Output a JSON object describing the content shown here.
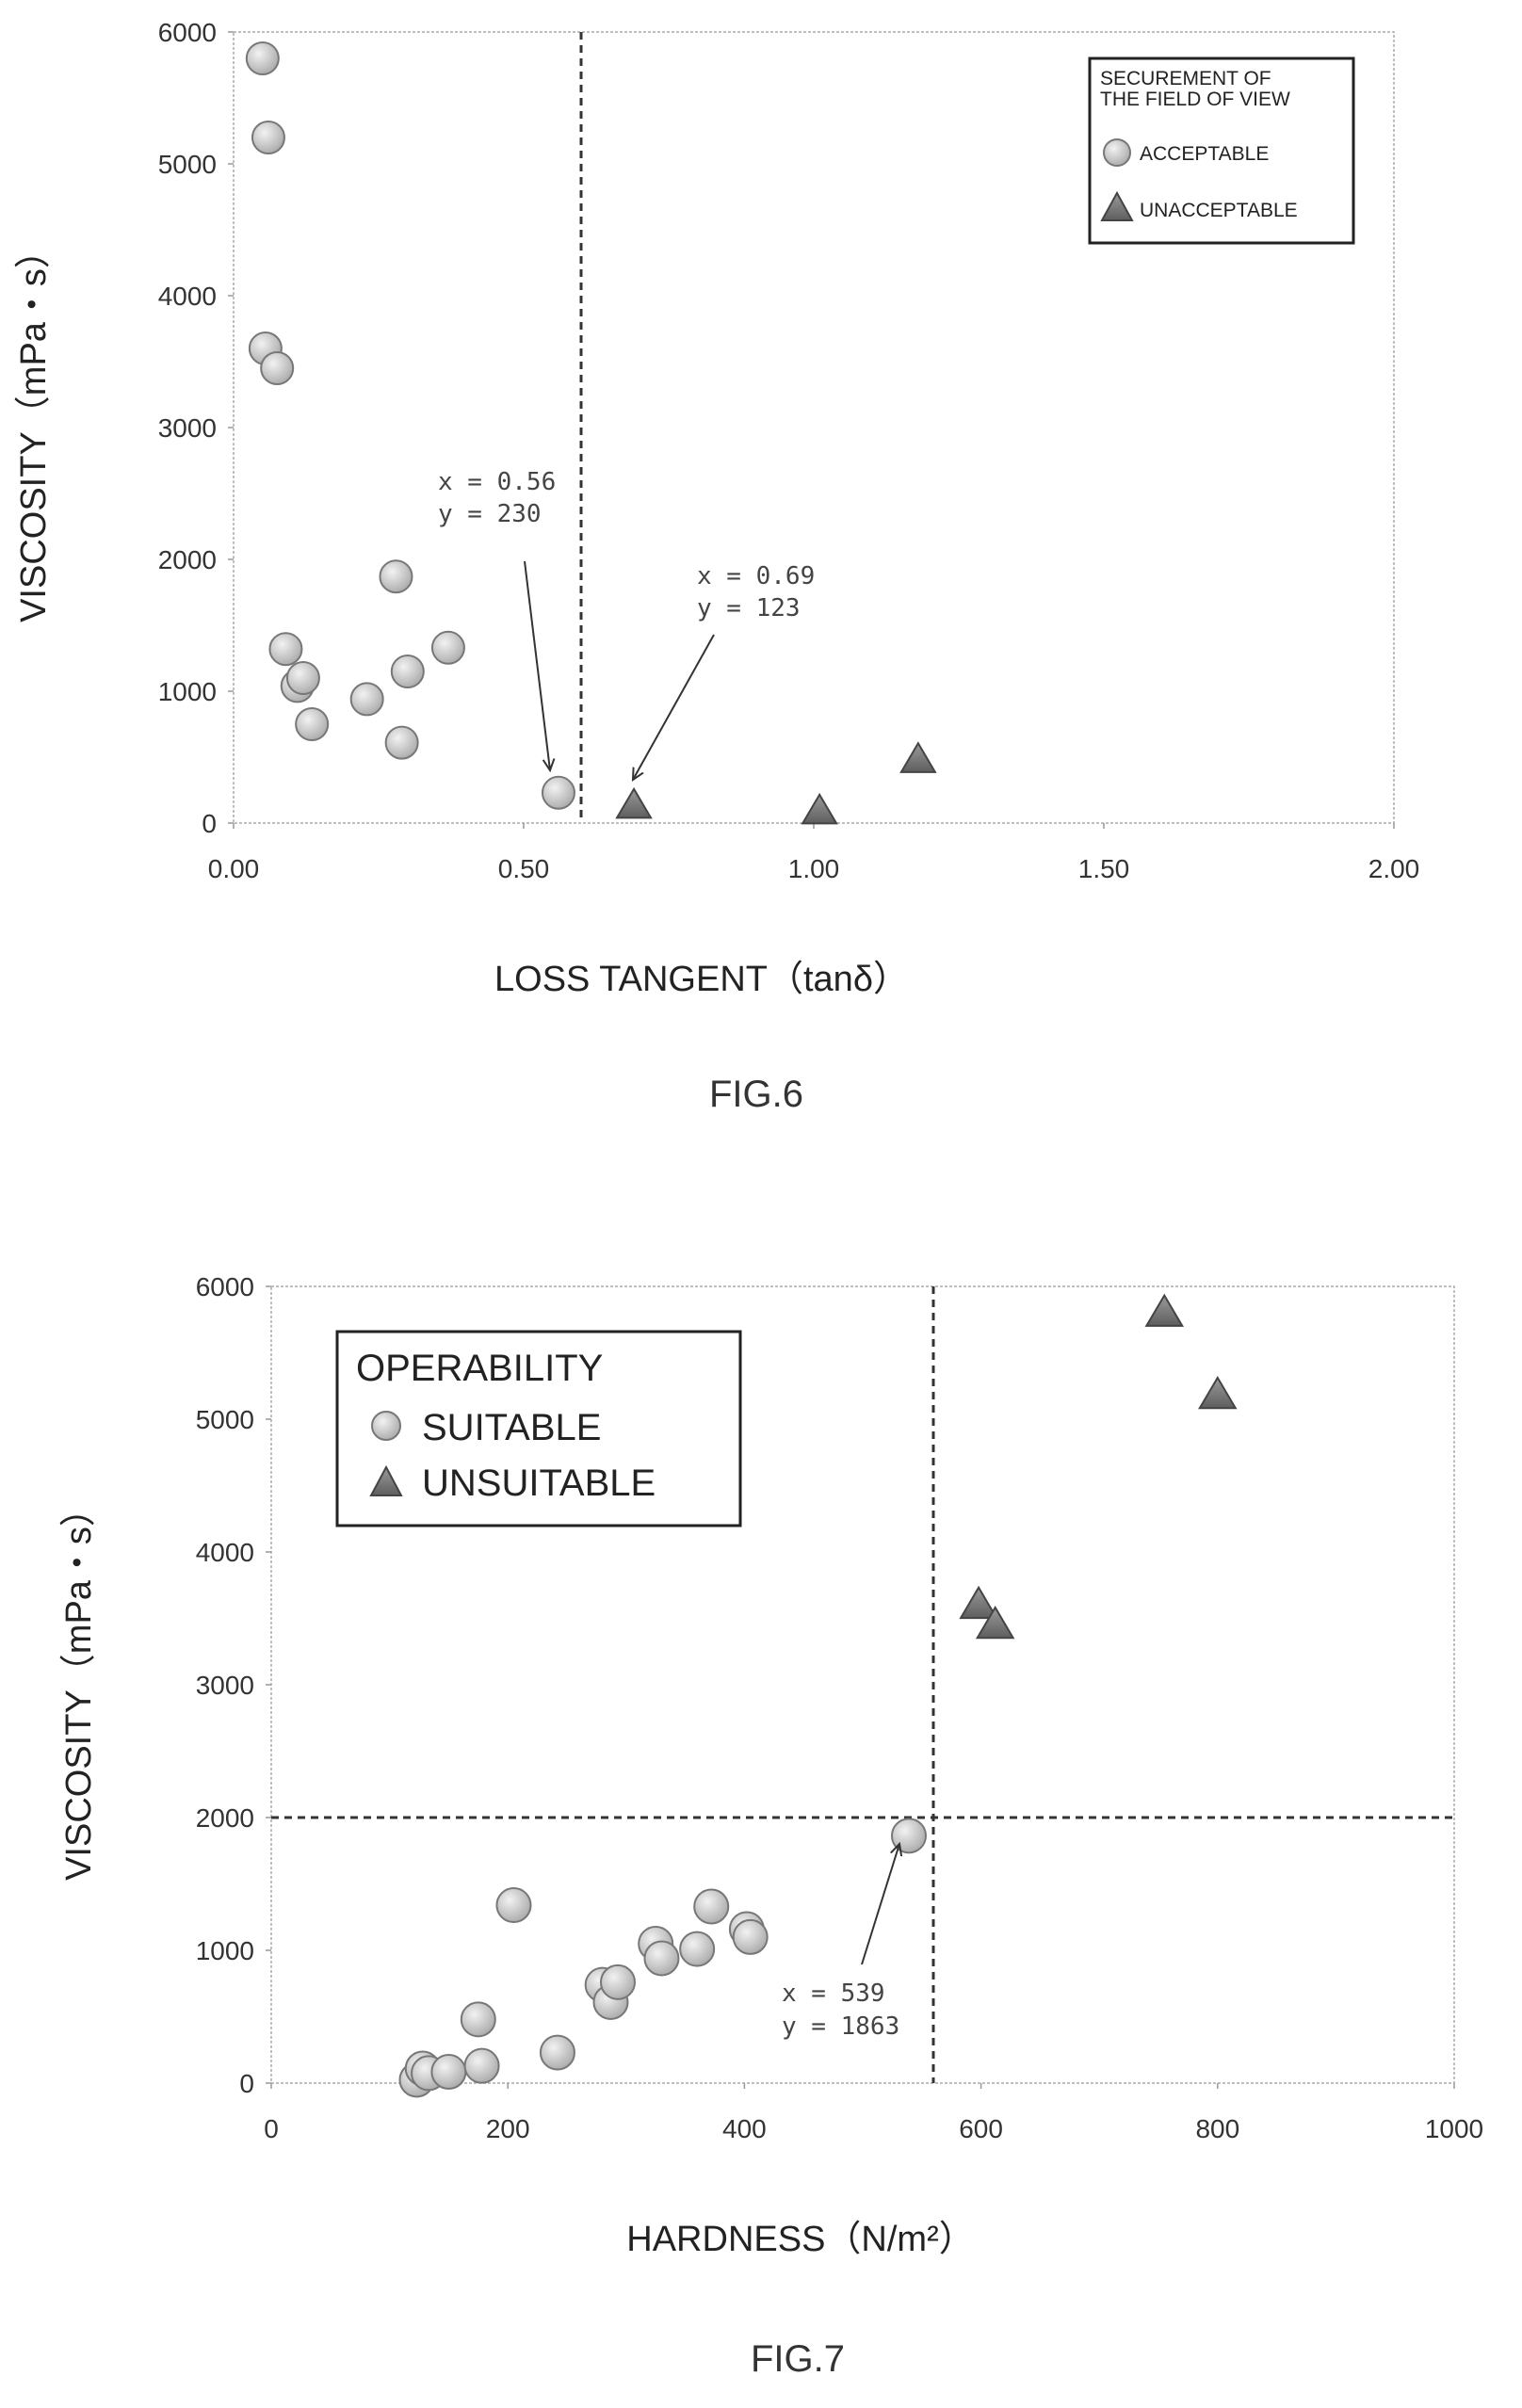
{
  "chart_data": [
    {
      "type": "scatter",
      "figure_label": "FIG.6",
      "xlabel": "LOSS TANGENT（tanδ）",
      "ylabel": "VISCOSITY（mPa・s）",
      "xlim": [
        0,
        2
      ],
      "ylim": [
        0,
        6000
      ],
      "x_ticks": [
        "0.00",
        "0.50",
        "1.00",
        "1.50",
        "2.00"
      ],
      "y_ticks": [
        "0",
        "1000",
        "2000",
        "3000",
        "4000",
        "5000",
        "6000"
      ],
      "grid": false,
      "legend_position": "top-right",
      "legend_title": "SECUREMENT OF THE FIELD OF VIEW",
      "threshold_x": 0.6,
      "series": [
        {
          "name": "ACCEPTABLE",
          "marker": "circle",
          "points": [
            [
              0.05,
              5800
            ],
            [
              0.06,
              5200
            ],
            [
              0.055,
              3600
            ],
            [
              0.075,
              3450
            ],
            [
              0.09,
              1320
            ],
            [
              0.11,
              1040
            ],
            [
              0.12,
              1100
            ],
            [
              0.135,
              750
            ],
            [
              0.23,
              940
            ],
            [
              0.28,
              1870
            ],
            [
              0.29,
              610
            ],
            [
              0.3,
              1150
            ],
            [
              0.37,
              1330
            ],
            [
              0.56,
              230
            ]
          ]
        },
        {
          "name": "UNACCEPTABLE",
          "marker": "triangle",
          "points": [
            [
              0.69,
              123
            ],
            [
              1.01,
              80
            ],
            [
              1.18,
              470
            ]
          ]
        }
      ],
      "annotations": [
        {
          "lines": [
            "x = 0.56",
            "y = 230"
          ],
          "target": [
            0.56,
            230
          ]
        },
        {
          "lines": [
            "x = 0.69",
            "y = 123"
          ],
          "target": [
            0.69,
            123
          ]
        }
      ]
    },
    {
      "type": "scatter",
      "figure_label": "FIG.7",
      "xlabel": "HARDNESS（N/m²）",
      "ylabel": "VISCOSITY（mPa・s）",
      "xlim": [
        0,
        1000
      ],
      "ylim": [
        0,
        6000
      ],
      "x_ticks": [
        "0",
        "200",
        "400",
        "600",
        "800",
        "1000"
      ],
      "y_ticks": [
        "0",
        "1000",
        "2000",
        "3000",
        "4000",
        "5000",
        "6000"
      ],
      "grid": false,
      "legend_position": "top-left",
      "legend_title": "OPERABILITY",
      "threshold_x": 560,
      "threshold_y": 2000,
      "series": [
        {
          "name": "SUITABLE",
          "marker": "circle",
          "points": [
            [
              123,
              25
            ],
            [
              128,
              110
            ],
            [
              133,
              75
            ],
            [
              150,
              85
            ],
            [
              178,
              130
            ],
            [
              175,
              480
            ],
            [
              205,
              1340
            ],
            [
              242,
              230
            ],
            [
              280,
              740
            ],
            [
              287,
              610
            ],
            [
              293,
              760
            ],
            [
              325,
              1050
            ],
            [
              330,
              940
            ],
            [
              360,
              1010
            ],
            [
              372,
              1330
            ],
            [
              402,
              1160
            ],
            [
              405,
              1100
            ],
            [
              539,
              1863
            ]
          ]
        },
        {
          "name": "UNSUITABLE",
          "marker": "triangle",
          "points": [
            [
              598,
              3590
            ],
            [
              612,
              3440
            ],
            [
              755,
              5790
            ],
            [
              800,
              5170
            ]
          ]
        }
      ],
      "annotations": [
        {
          "lines": [
            "x = 539",
            "y = 1863"
          ],
          "target": [
            539,
            1863
          ]
        }
      ]
    }
  ]
}
